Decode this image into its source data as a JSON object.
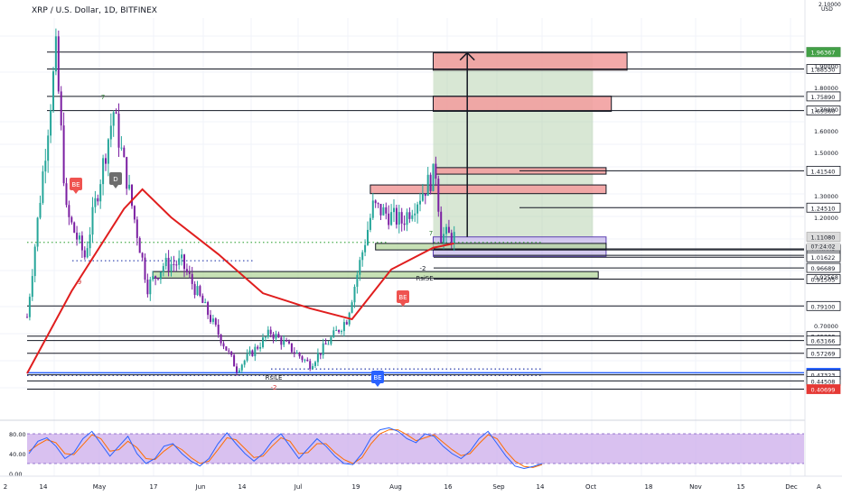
{
  "header": {
    "title": "XRP / U.S. Dollar, 1D, BITFINEX"
  },
  "price_axis": {
    "currency": "USD",
    "top_label": "2.10000",
    "ticks": [
      "1.90000",
      "1.80000",
      "1.70000",
      "1.60000",
      "1.50000",
      "1.30000",
      "1.20000",
      "0.92568",
      "0.70000"
    ],
    "level_tags": [
      {
        "label": "1.96370",
        "value": 1.9637,
        "style": "box"
      },
      {
        "label": "1.96367",
        "value": 1.96367,
        "style": "green"
      },
      {
        "label": "1.88530",
        "value": 1.8853,
        "style": "box"
      },
      {
        "label": "1.75890",
        "value": 1.7589,
        "style": "box"
      },
      {
        "label": "1.69360",
        "value": 1.6936,
        "style": "box"
      },
      {
        "label": "1.41540",
        "value": 1.4154,
        "style": "box"
      },
      {
        "label": "1.24510",
        "value": 1.2451,
        "style": "box"
      },
      {
        "label": "1.11080",
        "value": 1.1108,
        "style": "gray"
      },
      {
        "label": "1.05457",
        "value": 1.05457,
        "style": "box"
      },
      {
        "label": "1.05008",
        "value": 1.05008,
        "style": "box"
      },
      {
        "label": "1.02477",
        "value": 1.02477,
        "style": "box"
      },
      {
        "label": "1.01622",
        "value": 1.01622,
        "style": "box"
      },
      {
        "label": "0.96689",
        "value": 0.96689,
        "style": "box"
      },
      {
        "label": "0.91505",
        "value": 0.91505,
        "style": "box"
      },
      {
        "label": "0.79100",
        "value": 0.791,
        "style": "box"
      },
      {
        "label": "0.65200",
        "value": 0.652,
        "style": "box"
      },
      {
        "label": "0.63166",
        "value": 0.63166,
        "style": "box"
      },
      {
        "label": "0.57269",
        "value": 0.57269,
        "style": "box"
      },
      {
        "label": "0.48262",
        "value": 0.48262,
        "style": "blue"
      },
      {
        "label": "0.47323",
        "value": 0.47323,
        "style": "box"
      },
      {
        "label": "0.44508",
        "value": 0.44508,
        "style": "box"
      },
      {
        "label": "0.40699",
        "value": 0.40699,
        "style": "red"
      }
    ],
    "countdown": "07:24:02"
  },
  "time_axis": {
    "ticks": [
      "2",
      "14",
      "May",
      "17",
      "Jun",
      "14",
      "Jul",
      "19",
      "Aug",
      "16",
      "Sep",
      "14",
      "Oct",
      "18",
      "Nov",
      "15",
      "Dec"
    ]
  },
  "rsi_panel": {
    "ticks": [
      "80.00",
      "40.00",
      "0.00"
    ]
  },
  "annotations": [
    "BE",
    "D",
    "BE",
    "BE",
    "RsiLE",
    "RsiSE",
    "-2",
    "7",
    "9",
    "7",
    "-2"
  ],
  "footer": {
    "scale_button": "A"
  },
  "colors": {
    "up": "#26a69a",
    "down": "#7b1fa2",
    "ma": "#e01e1e",
    "green_zone": "#b4d79c",
    "red_zone": "#f2a0a0",
    "purple_zone": "#b9a9e6",
    "rsi_band": "#c9a6e9"
  },
  "chart_data": {
    "type": "candlestick",
    "symbol": "XRP / U.S. Dollar",
    "interval": "1D",
    "exchange": "BITFINEX",
    "y_range": [
      0.38,
      2.1
    ],
    "last_price": 1.1108,
    "ohlc_keypoints": [
      {
        "date": "2021-04-03",
        "price": 0.74
      },
      {
        "date": "2021-04-14",
        "price": 1.96
      },
      {
        "date": "2021-04-18",
        "price": 1.22
      },
      {
        "date": "2021-04-25",
        "price": 1.02
      },
      {
        "date": "2021-05-06",
        "price": 1.69
      },
      {
        "date": "2021-05-19",
        "price": 0.88
      },
      {
        "date": "2021-05-25",
        "price": 0.98
      },
      {
        "date": "2021-06-01",
        "price": 0.99
      },
      {
        "date": "2021-06-22",
        "price": 0.5
      },
      {
        "date": "2021-07-05",
        "price": 0.67
      },
      {
        "date": "2021-07-20",
        "price": 0.52
      },
      {
        "date": "2021-08-03",
        "price": 0.73
      },
      {
        "date": "2021-08-13",
        "price": 1.25
      },
      {
        "date": "2021-08-24",
        "price": 1.18
      },
      {
        "date": "2021-09-06",
        "price": 1.41
      },
      {
        "date": "2021-09-08",
        "price": 1.12
      },
      {
        "date": "2021-09-13",
        "price": 1.11
      }
    ],
    "moving_average": [
      {
        "date": "2021-04-03",
        "price": 0.48
      },
      {
        "date": "2021-04-20",
        "price": 0.86
      },
      {
        "date": "2021-05-10",
        "price": 1.24
      },
      {
        "date": "2021-05-17",
        "price": 1.33
      },
      {
        "date": "2021-05-28",
        "price": 1.2
      },
      {
        "date": "2021-06-15",
        "price": 1.03
      },
      {
        "date": "2021-07-02",
        "price": 0.85
      },
      {
        "date": "2021-07-20",
        "price": 0.78
      },
      {
        "date": "2021-08-05",
        "price": 0.73
      },
      {
        "date": "2021-08-20",
        "price": 0.96
      },
      {
        "date": "2021-09-05",
        "price": 1.06
      },
      {
        "date": "2021-09-13",
        "price": 1.08
      }
    ],
    "horizontal_levels": [
      1.9637,
      1.8853,
      1.7589,
      1.6936,
      1.4154,
      1.2451,
      1.05457,
      1.05008,
      1.02477,
      1.01622,
      0.96689,
      0.91505,
      0.791,
      0.652,
      0.63166,
      0.57269,
      0.48262,
      0.47323,
      0.44508,
      0.40699
    ],
    "zones": [
      {
        "kind": "resistance",
        "from": "2021-09-05",
        "to": "2021-11-18",
        "low": 1.88,
        "high": 1.96
      },
      {
        "kind": "resistance",
        "from": "2021-09-05",
        "to": "2021-11-12",
        "low": 1.69,
        "high": 1.76
      },
      {
        "kind": "resistance",
        "from": "2021-09-06",
        "to": "2021-11-10",
        "low": 1.4,
        "high": 1.43
      },
      {
        "kind": "resistance",
        "from": "2021-08-12",
        "to": "2021-11-10",
        "low": 1.31,
        "high": 1.35
      },
      {
        "kind": "target",
        "from": "2021-09-05",
        "to": "2021-11-05",
        "low": 1.11,
        "high": 1.96
      },
      {
        "kind": "stop",
        "from": "2021-09-05",
        "to": "2021-11-10",
        "low": 1.02,
        "high": 1.11
      },
      {
        "kind": "support",
        "from": "2021-05-21",
        "to": "2021-11-07",
        "low": 0.92,
        "high": 0.95
      },
      {
        "kind": "support",
        "from": "2021-08-14",
        "to": "2021-11-10",
        "low": 1.05,
        "high": 1.08
      }
    ],
    "trade_arrow": {
      "date": "2021-09-18",
      "from": 1.11,
      "to": 1.96
    },
    "rsi": {
      "ylim": [
        0,
        100
      ],
      "band": [
        20,
        80
      ],
      "k": [
        40,
        65,
        72,
        55,
        30,
        42,
        70,
        85,
        60,
        35,
        55,
        75,
        40,
        20,
        30,
        55,
        60,
        40,
        25,
        15,
        30,
        60,
        82,
        60,
        40,
        25,
        40,
        65,
        80,
        55,
        30,
        50,
        70,
        55,
        35,
        20,
        18,
        40,
        72,
        88,
        92,
        85,
        70,
        62,
        80,
        75,
        55,
        40,
        30,
        45,
        70,
        85,
        60,
        35,
        15,
        10,
        14,
        20
      ],
      "d": [
        45,
        58,
        68,
        62,
        40,
        38,
        58,
        78,
        70,
        45,
        48,
        65,
        52,
        30,
        28,
        45,
        58,
        48,
        32,
        20,
        25,
        48,
        72,
        68,
        50,
        32,
        35,
        55,
        72,
        65,
        40,
        42,
        60,
        60,
        42,
        28,
        20,
        32,
        60,
        80,
        88,
        88,
        78,
        66,
        72,
        78,
        63,
        48,
        36,
        40,
        60,
        78,
        70,
        45,
        25,
        14,
        12,
        18
      ]
    }
  }
}
